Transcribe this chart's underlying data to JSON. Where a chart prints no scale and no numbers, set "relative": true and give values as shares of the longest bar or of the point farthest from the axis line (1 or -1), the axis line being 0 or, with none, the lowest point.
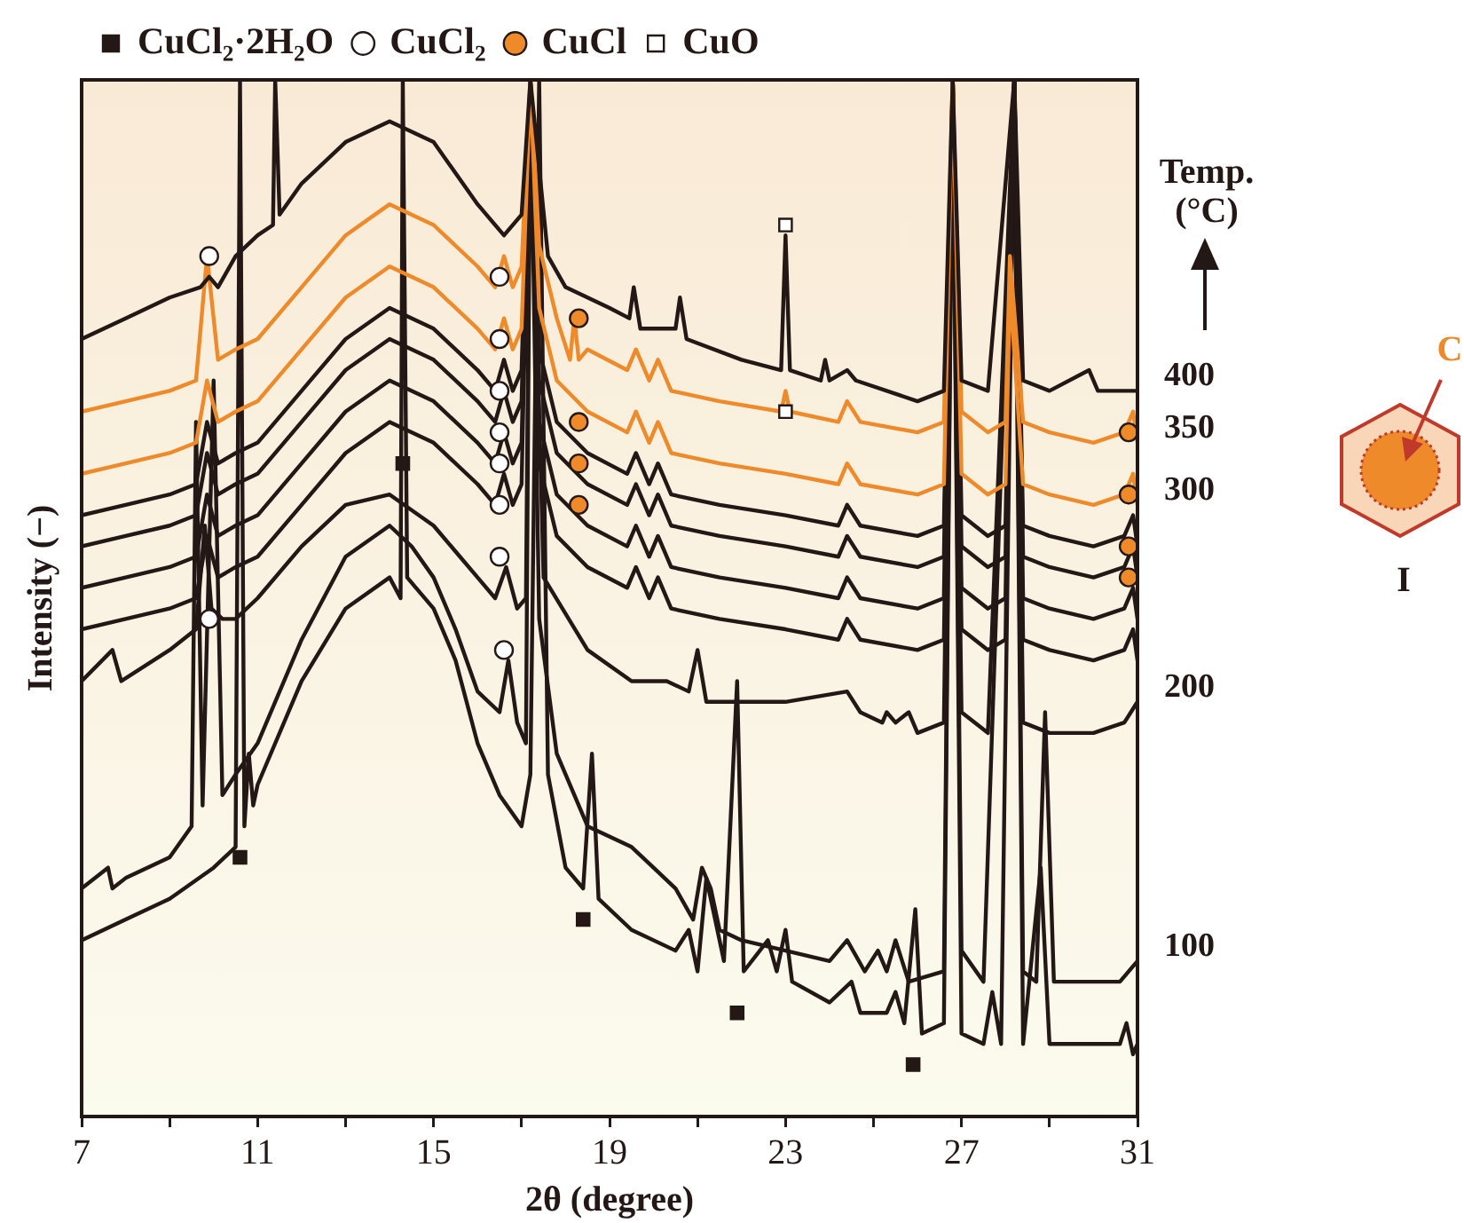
{
  "chart_data": {
    "type": "line",
    "relative": true,
    "xlabel": "2θ (degree)",
    "ylabel": "Intensity (−)",
    "xlim": [
      7,
      31
    ],
    "xticks": [
      7,
      {
        "value": 9,
        "label": null
      },
      11,
      {
        "value": 13,
        "label": null
      },
      15,
      {
        "value": 17,
        "label": null
      },
      19,
      {
        "value": 21,
        "label": null
      },
      23,
      {
        "value": 25,
        "label": null
      },
      27,
      {
        "value": 29,
        "label": null
      },
      31
    ],
    "legend": "top",
    "marker": "none",
    "line_style": "solid",
    "annotations": [
      "Temp. (°C)",
      "C",
      "I"
    ],
    "x": [
      7,
      8,
      9,
      9.6,
      9.85,
      10.1,
      10.5,
      11,
      12,
      13,
      14,
      15,
      16,
      16.4,
      16.6,
      16.8,
      17.0,
      17.2,
      17.4,
      17.8,
      18.5,
      19.4,
      19.6,
      19.9,
      20.1,
      20.4,
      21.5,
      23,
      24.2,
      24.4,
      24.7,
      26,
      26.6,
      26.8,
      27.0,
      27.6,
      28.0,
      28.2,
      28.4,
      29,
      30,
      30.7,
      30.9,
      31
    ],
    "series": [
      {
        "name": "400",
        "type": "line",
        "color": "#231815",
        "x": [
          7,
          8,
          9,
          9.7,
          9.9,
          10.1,
          10.5,
          11,
          11.35,
          11.4,
          11.5,
          12,
          13,
          14,
          15,
          16,
          16.6,
          17.0,
          17.2,
          17.6,
          18,
          19,
          19.45,
          19.55,
          19.7,
          20.5,
          20.6,
          20.75,
          22,
          22.9,
          23.0,
          23.1,
          23.8,
          23.9,
          24.0,
          24.4,
          24.6,
          26,
          26.6,
          26.8,
          27.0,
          27.6,
          28.2,
          28.4,
          29,
          29.9,
          30.1,
          31
        ],
        "values": [
          0.75,
          0.77,
          0.79,
          0.8,
          0.81,
          0.8,
          0.83,
          0.85,
          0.86,
          1.0,
          0.87,
          0.9,
          0.94,
          0.96,
          0.94,
          0.88,
          0.85,
          0.87,
          1.0,
          0.83,
          0.8,
          0.78,
          0.77,
          0.8,
          0.76,
          0.76,
          0.79,
          0.75,
          0.73,
          0.72,
          0.85,
          0.72,
          0.71,
          0.73,
          0.71,
          0.72,
          0.71,
          0.69,
          0.7,
          1.0,
          0.71,
          0.7,
          1.0,
          0.71,
          0.7,
          0.72,
          0.7,
          0.7
        ]
      },
      {
        "name": "350",
        "type": "line",
        "color": "#ee8a2a",
        "x": [
          7,
          8,
          9,
          9.6,
          9.85,
          10.1,
          10.5,
          11,
          12,
          13,
          14,
          15,
          16,
          16.4,
          16.6,
          16.8,
          17.0,
          17.2,
          17.4,
          17.8,
          18.1,
          18.2,
          18.3,
          18.5,
          19.4,
          19.6,
          19.9,
          20.1,
          20.4,
          21.5,
          22.9,
          23.0,
          23.1,
          24.2,
          24.4,
          24.7,
          26,
          26.6,
          26.8,
          27.0,
          27.6,
          28.0,
          28.1,
          28.4,
          29,
          30,
          30.7,
          30.9,
          31
        ],
        "values": [
          0.68,
          0.69,
          0.7,
          0.71,
          0.83,
          0.73,
          0.74,
          0.75,
          0.8,
          0.85,
          0.88,
          0.86,
          0.82,
          0.8,
          0.83,
          0.8,
          0.82,
          1.0,
          0.84,
          0.77,
          0.73,
          0.77,
          0.73,
          0.74,
          0.72,
          0.74,
          0.71,
          0.73,
          0.7,
          0.69,
          0.68,
          0.7,
          0.68,
          0.67,
          0.69,
          0.67,
          0.66,
          0.67,
          1.0,
          0.68,
          0.66,
          0.67,
          0.83,
          0.67,
          0.66,
          0.65,
          0.66,
          0.68,
          0.65
        ]
      },
      {
        "name": "300",
        "type": "line",
        "color": "#ee8a2a",
        "x": [
          7,
          8,
          9,
          9.6,
          9.85,
          10.1,
          10.5,
          11,
          12,
          13,
          14,
          15,
          16,
          16.4,
          16.6,
          16.8,
          17.0,
          17.2,
          17.4,
          17.8,
          18.5,
          19.4,
          19.6,
          19.9,
          20.1,
          20.4,
          21.5,
          23,
          24.2,
          24.4,
          24.7,
          26,
          26.6,
          26.8,
          27.0,
          27.6,
          28.0,
          28.1,
          28.4,
          29,
          30,
          30.7,
          30.9,
          31
        ],
        "values": [
          0.62,
          0.63,
          0.64,
          0.65,
          0.71,
          0.67,
          0.68,
          0.69,
          0.74,
          0.79,
          0.82,
          0.8,
          0.76,
          0.74,
          0.77,
          0.74,
          0.76,
          1.0,
          0.78,
          0.71,
          0.68,
          0.66,
          0.68,
          0.65,
          0.67,
          0.64,
          0.63,
          0.62,
          0.61,
          0.63,
          0.61,
          0.6,
          0.61,
          1.0,
          0.62,
          0.6,
          0.61,
          0.8,
          0.61,
          0.6,
          0.59,
          0.6,
          0.62,
          0.59
        ]
      },
      {
        "type": "line",
        "color": "#231815",
        "values": [
          0.58,
          0.59,
          0.6,
          0.61,
          0.67,
          0.63,
          0.64,
          0.65,
          0.7,
          0.75,
          0.78,
          0.76,
          0.72,
          0.7,
          0.73,
          0.7,
          0.72,
          1.0,
          0.74,
          0.67,
          0.64,
          0.62,
          0.64,
          0.61,
          0.63,
          0.6,
          0.59,
          0.58,
          0.57,
          0.59,
          0.57,
          0.56,
          0.57,
          1.0,
          0.58,
          0.56,
          0.57,
          1.0,
          0.57,
          0.56,
          0.55,
          0.56,
          0.58,
          0.55
        ]
      },
      {
        "type": "line",
        "color": "#231815",
        "values": [
          0.55,
          0.56,
          0.57,
          0.58,
          0.64,
          0.6,
          0.61,
          0.62,
          0.67,
          0.72,
          0.75,
          0.73,
          0.69,
          0.67,
          0.7,
          0.67,
          0.69,
          1.0,
          0.71,
          0.64,
          0.61,
          0.59,
          0.61,
          0.58,
          0.6,
          0.57,
          0.56,
          0.55,
          0.54,
          0.56,
          0.54,
          0.53,
          0.54,
          1.0,
          0.55,
          0.53,
          0.54,
          1.0,
          0.54,
          0.53,
          0.52,
          0.53,
          0.55,
          0.52
        ]
      },
      {
        "type": "line",
        "color": "#231815",
        "values": [
          0.51,
          0.52,
          0.53,
          0.54,
          0.6,
          0.56,
          0.57,
          0.58,
          0.63,
          0.68,
          0.71,
          0.69,
          0.65,
          0.63,
          0.66,
          0.63,
          0.65,
          1.0,
          0.67,
          0.6,
          0.57,
          0.55,
          0.57,
          0.54,
          0.56,
          0.53,
          0.52,
          0.51,
          0.5,
          0.52,
          0.5,
          0.49,
          0.5,
          1.0,
          0.51,
          0.49,
          0.5,
          1.0,
          0.5,
          0.49,
          0.48,
          0.49,
          0.51,
          0.48
        ]
      },
      {
        "type": "line",
        "color": "#231815",
        "values": [
          0.47,
          0.48,
          0.49,
          0.5,
          0.56,
          0.52,
          0.53,
          0.54,
          0.59,
          0.64,
          0.67,
          0.65,
          0.61,
          0.59,
          0.62,
          0.59,
          0.61,
          1.0,
          0.63,
          0.56,
          0.53,
          0.51,
          0.53,
          0.5,
          0.52,
          0.49,
          0.48,
          0.47,
          0.46,
          0.48,
          0.46,
          0.45,
          0.46,
          1.0,
          0.47,
          0.45,
          0.46,
          1.0,
          0.46,
          0.45,
          0.44,
          0.45,
          0.47,
          0.44
        ]
      },
      {
        "name": "200",
        "type": "line",
        "color": "#231815",
        "x": [
          7,
          7.7,
          7.9,
          9,
          9.6,
          9.8,
          9.95,
          10.2,
          10.5,
          11,
          12,
          13,
          14,
          15,
          16,
          16.4,
          16.65,
          16.9,
          17.1,
          17.2,
          17.5,
          18.5,
          19.5,
          20.3,
          20.8,
          21.0,
          21.2,
          22,
          23,
          24.4,
          24.7,
          25.2,
          25.3,
          25.5,
          25.8,
          26,
          26.6,
          26.8,
          27.0,
          27.6,
          28.2,
          28.4,
          29,
          30,
          30.7,
          31
        ],
        "values": [
          0.42,
          0.45,
          0.42,
          0.45,
          0.47,
          0.57,
          0.49,
          0.48,
          0.48,
          0.5,
          0.55,
          0.59,
          0.6,
          0.57,
          0.52,
          0.5,
          0.53,
          0.49,
          0.5,
          1.0,
          0.52,
          0.45,
          0.42,
          0.42,
          0.41,
          0.45,
          0.4,
          0.4,
          0.4,
          0.41,
          0.39,
          0.38,
          0.39,
          0.38,
          0.39,
          0.37,
          0.38,
          1.0,
          0.39,
          0.37,
          1.0,
          0.38,
          0.37,
          0.37,
          0.38,
          0.4
        ]
      },
      {
        "name": "100",
        "type": "line",
        "color": "#231815",
        "x": [
          7,
          7.6,
          7.7,
          8,
          9,
          9.5,
          9.6,
          9.75,
          10.0,
          10.2,
          10.5,
          11,
          12,
          13,
          14,
          14.5,
          15,
          15.5,
          16,
          16.5,
          16.7,
          16.9,
          17.1,
          17.2,
          17.4,
          17.8,
          18.5,
          19.5,
          20,
          20.5,
          20.9,
          21.1,
          21.3,
          21.5,
          22,
          23,
          24,
          24.4,
          24.8,
          25.1,
          25.3,
          25.5,
          25.8,
          26.6,
          26.8,
          27.0,
          27.5,
          28.2,
          28.4,
          28.7,
          28.9,
          29.1,
          30,
          30.6,
          31
        ],
        "values": [
          0.22,
          0.24,
          0.22,
          0.23,
          0.25,
          0.28,
          0.67,
          0.3,
          0.71,
          0.31,
          0.33,
          0.36,
          0.46,
          0.54,
          0.57,
          0.55,
          0.52,
          0.47,
          0.41,
          0.39,
          0.44,
          0.38,
          0.36,
          1.0,
          0.48,
          0.35,
          0.28,
          0.26,
          0.24,
          0.22,
          0.19,
          0.24,
          0.22,
          0.18,
          0.17,
          0.16,
          0.15,
          0.17,
          0.14,
          0.16,
          0.14,
          0.17,
          0.13,
          0.14,
          1.0,
          0.16,
          0.13,
          1.0,
          0.14,
          0.13,
          0.39,
          0.13,
          0.13,
          0.13,
          0.15
        ]
      },
      {
        "type": "line",
        "color": "#231815",
        "x": [
          7,
          8,
          9,
          10,
          10.5,
          10.6,
          10.7,
          10.8,
          10.9,
          11,
          12,
          13,
          14,
          14.25,
          14.3,
          14.4,
          14.6,
          15,
          15.5,
          16,
          16.5,
          17.0,
          17.2,
          17.4,
          17.6,
          18,
          18.4,
          18.6,
          18.75,
          19.5,
          20.5,
          20.8,
          21.0,
          21.2,
          21.4,
          21.6,
          21.9,
          22.05,
          22.6,
          22.8,
          23.0,
          23.15,
          24,
          24.5,
          24.7,
          25.3,
          25.5,
          25.7,
          25.95,
          26.1,
          26.6,
          26.8,
          27.0,
          27.5,
          27.7,
          27.9,
          28.2,
          28.4,
          28.8,
          29.0,
          30,
          30.6,
          30.75,
          30.9,
          31
        ],
        "values": [
          0.17,
          0.19,
          0.21,
          0.24,
          0.26,
          1.0,
          0.28,
          0.35,
          0.3,
          0.32,
          0.42,
          0.49,
          0.52,
          0.5,
          1.0,
          0.52,
          0.51,
          0.49,
          0.44,
          0.36,
          0.31,
          0.28,
          0.33,
          1.0,
          0.33,
          0.24,
          0.22,
          0.35,
          0.21,
          0.18,
          0.16,
          0.18,
          0.14,
          0.23,
          0.19,
          0.15,
          0.42,
          0.14,
          0.17,
          0.14,
          0.18,
          0.13,
          0.11,
          0.13,
          0.1,
          0.1,
          0.12,
          0.09,
          0.2,
          0.08,
          0.09,
          1.0,
          0.08,
          0.07,
          0.12,
          0.07,
          1.0,
          0.07,
          0.24,
          0.07,
          0.07,
          0.07,
          0.09,
          0.06,
          0.07
        ]
      },
      {
        "name": "CuCl₂·2H₂O",
        "type": "scatter",
        "marker": "square",
        "color": "#231815",
        "x": [
          10.6,
          14.3,
          18.4,
          21.9,
          25.9
        ],
        "values": [
          0.25,
          0.63,
          0.19,
          0.1,
          0.05
        ]
      },
      {
        "name": "CuCl₂",
        "type": "scatter",
        "marker": "circle",
        "color": "#ffffff",
        "x": [
          9.9,
          9.9,
          16.5,
          16.5,
          16.5,
          16.5,
          16.5,
          16.5,
          16.5,
          16.6
        ],
        "values": [
          0.83,
          0.48,
          0.81,
          0.75,
          0.7,
          0.66,
          0.63,
          0.59,
          0.54,
          0.45
        ]
      },
      {
        "name": "CuCl",
        "type": "scatter",
        "marker": "circle",
        "color": "#ee8a2a",
        "x": [
          18.3,
          18.3,
          18.3,
          18.3,
          30.8,
          30.8,
          30.8,
          30.8
        ],
        "values": [
          0.77,
          0.67,
          0.63,
          0.59,
          0.66,
          0.6,
          0.55,
          0.52
        ]
      },
      {
        "name": "CuO",
        "type": "scatter",
        "marker": "square",
        "color": "#ffffff",
        "x": [
          23.0,
          23.0
        ],
        "values": [
          0.86,
          0.68
        ]
      }
    ]
  }
}
